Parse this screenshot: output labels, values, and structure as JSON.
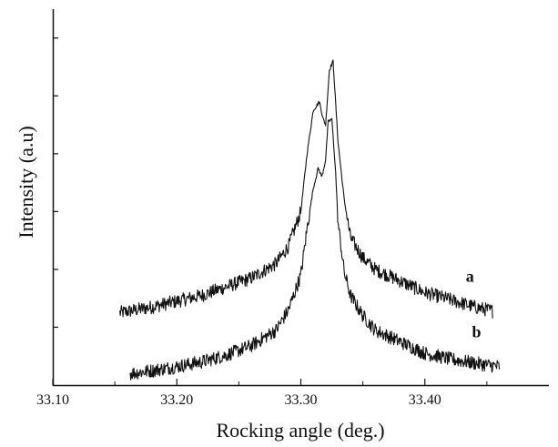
{
  "chart_data": {
    "type": "line",
    "title": "",
    "xlabel": "Rocking angle (deg.)",
    "ylabel": "Intensity (a.u)",
    "xlim": [
      33.1,
      33.5
    ],
    "ylim": [
      0,
      6.5
    ],
    "xticks": [
      33.1,
      33.2,
      33.3,
      33.4
    ],
    "xtick_labels": [
      "33.10",
      "33.20",
      "33.30",
      "33.40"
    ],
    "yticks": [
      1,
      2,
      3,
      4,
      5,
      6
    ],
    "show_ytick_labels": false,
    "grid": false,
    "legend": "none",
    "noisy": true,
    "series": [
      {
        "name": "a",
        "x": [
          33.154,
          33.18,
          33.2,
          33.22,
          33.24,
          33.26,
          33.28,
          33.29,
          33.3,
          33.305,
          33.31,
          33.315,
          33.318,
          33.32,
          33.323,
          33.326,
          33.33,
          33.335,
          33.34,
          33.35,
          33.36,
          33.38,
          33.4,
          33.42,
          33.44,
          33.455
        ],
        "values": [
          1.25,
          1.35,
          1.45,
          1.55,
          1.7,
          1.85,
          2.1,
          2.4,
          3.0,
          4.0,
          4.75,
          4.9,
          4.6,
          4.5,
          5.45,
          5.6,
          4.2,
          3.2,
          2.55,
          2.2,
          2.0,
          1.8,
          1.6,
          1.48,
          1.35,
          1.28
        ]
      },
      {
        "name": "b",
        "x": [
          33.162,
          33.18,
          33.2,
          33.22,
          33.24,
          33.26,
          33.28,
          33.29,
          33.3,
          33.305,
          33.31,
          33.314,
          33.317,
          33.32,
          33.322,
          33.325,
          33.328,
          33.33,
          33.335,
          33.34,
          33.35,
          33.36,
          33.38,
          33.4,
          33.42,
          33.44,
          33.46
        ],
        "values": [
          0.2,
          0.25,
          0.32,
          0.4,
          0.52,
          0.68,
          0.95,
          1.3,
          1.9,
          2.7,
          3.4,
          3.75,
          3.6,
          3.9,
          4.55,
          4.6,
          3.7,
          2.8,
          1.95,
          1.55,
          1.2,
          0.95,
          0.75,
          0.55,
          0.45,
          0.38,
          0.32
        ]
      }
    ]
  }
}
